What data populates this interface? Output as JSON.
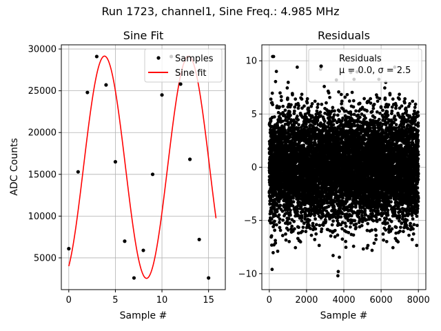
{
  "figure": {
    "suptitle": "Run 1723, channel1, Sine Freq.: 4.985 MHz"
  },
  "chart_data": [
    {
      "type": "scatter",
      "title": "Sine Fit",
      "xlabel": "Sample #",
      "ylabel": "ADC Counts",
      "xlim": [
        -0.8,
        16.8
      ],
      "ylim": [
        1200,
        30500
      ],
      "xticks": [
        0,
        5,
        10,
        15
      ],
      "yticks": [
        5000,
        10000,
        15000,
        20000,
        25000,
        30000
      ],
      "grid": true,
      "legend_position": "top-right",
      "samples": {
        "name": "Samples",
        "color": "#000000",
        "x": [
          0,
          1,
          2,
          3,
          4,
          5,
          6,
          7,
          8,
          9,
          10,
          11,
          12,
          13,
          14,
          15
        ],
        "y": [
          6100,
          15300,
          24800,
          29100,
          25700,
          16500,
          7000,
          2600,
          5900,
          15000,
          24500,
          29100,
          25800,
          16800,
          7200,
          2600
        ]
      },
      "fit": {
        "name": "Sine fit",
        "color": "#ff0000",
        "model": "offset + amplitude * sin(2*pi*cycles_per_sample*x + phase)",
        "offset": 15850,
        "amplitude": 13300,
        "cycles_per_sample": 0.1108,
        "phase": -1.098,
        "x_range": [
          0,
          15.8
        ]
      }
    },
    {
      "type": "scatter",
      "title": "Residuals",
      "xlabel": "Sample #",
      "ylabel": "",
      "xlim": [
        -400,
        8400
      ],
      "ylim": [
        -11.5,
        11.5
      ],
      "xticks": [
        0,
        2000,
        4000,
        6000,
        8000
      ],
      "yticks": [
        -10,
        -5,
        0,
        5,
        10
      ],
      "grid": true,
      "legend_position": "top-right",
      "series": {
        "name": "Residuals",
        "color": "#000000",
        "n_points": 8000,
        "x_range": [
          0,
          7999
        ],
        "mean": 0.0,
        "std": 2.5,
        "rendering": "8000 points drawn from a normal distribution with the mean and standard deviation shown in the legend",
        "outliers": [
          {
            "x": 180,
            "y": 10.4
          },
          {
            "x": 230,
            "y": 10.4
          },
          {
            "x": 3700,
            "y": -9.8
          },
          {
            "x": 3680,
            "y": -10.2
          },
          {
            "x": 150,
            "y": -9.6
          },
          {
            "x": 2750,
            "y": 9.2
          },
          {
            "x": 380,
            "y": 9.0
          },
          {
            "x": 3600,
            "y": 8.2
          }
        ]
      },
      "legend_lines": [
        "Residuals",
        "μ = 0.0, σ = 2.5"
      ]
    }
  ]
}
